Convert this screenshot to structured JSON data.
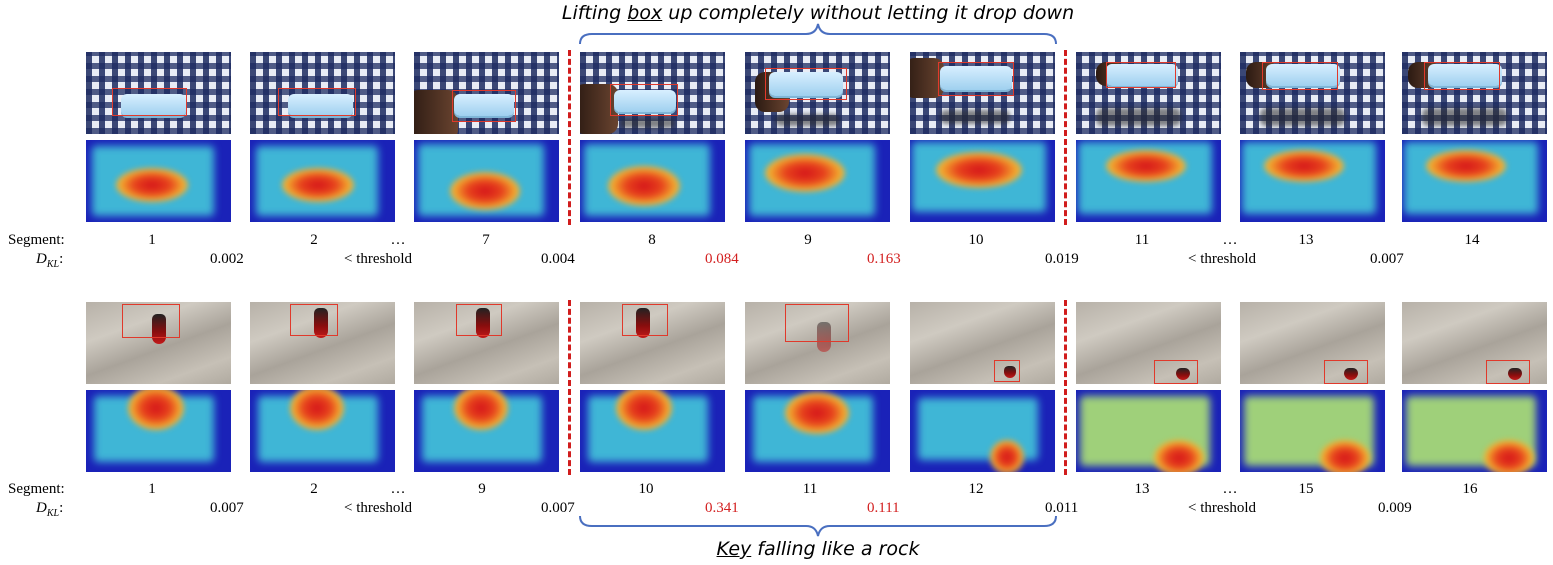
{
  "top_caption": {
    "prefix": "Lifting ",
    "emph": "box",
    "suffix": " up completely without letting it drop down"
  },
  "bottom_caption": {
    "emph": "Key",
    "suffix": " falling like a rock"
  },
  "labels": {
    "segment": "Segment:",
    "dkl_main": "D",
    "dkl_sub": "KL",
    "dkl_colon": ":"
  },
  "rows": [
    {
      "scene": "box",
      "segments": [
        "1",
        "2",
        "…",
        "7",
        "8",
        "9",
        "10",
        "11",
        "…",
        "13",
        "14"
      ],
      "dkl": [
        "0.002",
        "< threshold",
        "0.004",
        "0.084",
        "0.163",
        "0.019",
        "< threshold",
        "0.007"
      ],
      "dkl_highlight": [
        false,
        false,
        false,
        true,
        true,
        false,
        false,
        false
      ]
    },
    {
      "scene": "key",
      "segments": [
        "1",
        "2",
        "…",
        "9",
        "10",
        "11",
        "12",
        "13",
        "…",
        "15",
        "16"
      ],
      "dkl": [
        "0.007",
        "< threshold",
        "0.007",
        "0.341",
        "0.111",
        "0.011",
        "< threshold",
        "0.009"
      ],
      "dkl_highlight": [
        false,
        false,
        false,
        true,
        true,
        false,
        false,
        false
      ]
    }
  ],
  "colors": {
    "highlight": "#d32020",
    "brace": "#4a6fc0",
    "divider": "#d11d1d"
  }
}
